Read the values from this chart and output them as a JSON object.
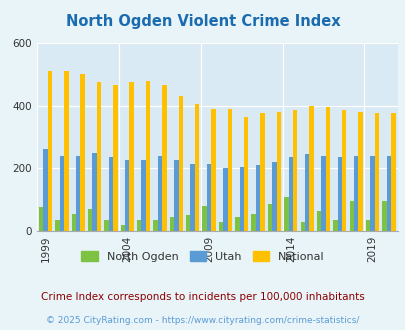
{
  "title": "North Ogden Violent Crime Index",
  "title_color": "#1a6bb0",
  "years": [
    1999,
    2000,
    2001,
    2002,
    2003,
    2004,
    2005,
    2006,
    2007,
    2008,
    2009,
    2010,
    2011,
    2012,
    2013,
    2014,
    2015,
    2016,
    2017,
    2018,
    2019,
    2020
  ],
  "north_ogden": [
    75,
    35,
    55,
    70,
    35,
    20,
    35,
    35,
    45,
    50,
    80,
    30,
    45,
    55,
    85,
    110,
    30,
    65,
    35,
    95,
    35,
    95
  ],
  "utah": [
    260,
    240,
    240,
    250,
    235,
    225,
    225,
    240,
    225,
    215,
    215,
    200,
    205,
    210,
    220,
    235,
    245,
    240,
    235,
    240,
    240,
    240
  ],
  "national": [
    510,
    510,
    500,
    475,
    465,
    475,
    480,
    465,
    430,
    405,
    390,
    390,
    365,
    375,
    380,
    385,
    400,
    395,
    385,
    380,
    375,
    375
  ],
  "north_ogden_color": "#7dc242",
  "utah_color": "#5b9bd5",
  "national_color": "#ffc000",
  "bg_color": "#e8f4f8",
  "plot_bg_color": "#daeaf4",
  "ylabel_max": 600,
  "yticks": [
    0,
    200,
    400,
    600
  ],
  "tick_years": [
    1999,
    2004,
    2009,
    2014,
    2019
  ],
  "footnote": "Crime Index corresponds to incidents per 100,000 inhabitants",
  "footnote2": "© 2025 CityRating.com - https://www.cityrating.com/crime-statistics/",
  "footnote_color": "#8b0000",
  "footnote2_color": "#5b9bd5",
  "legend_labels": [
    "North Ogden",
    "Utah",
    "National"
  ]
}
